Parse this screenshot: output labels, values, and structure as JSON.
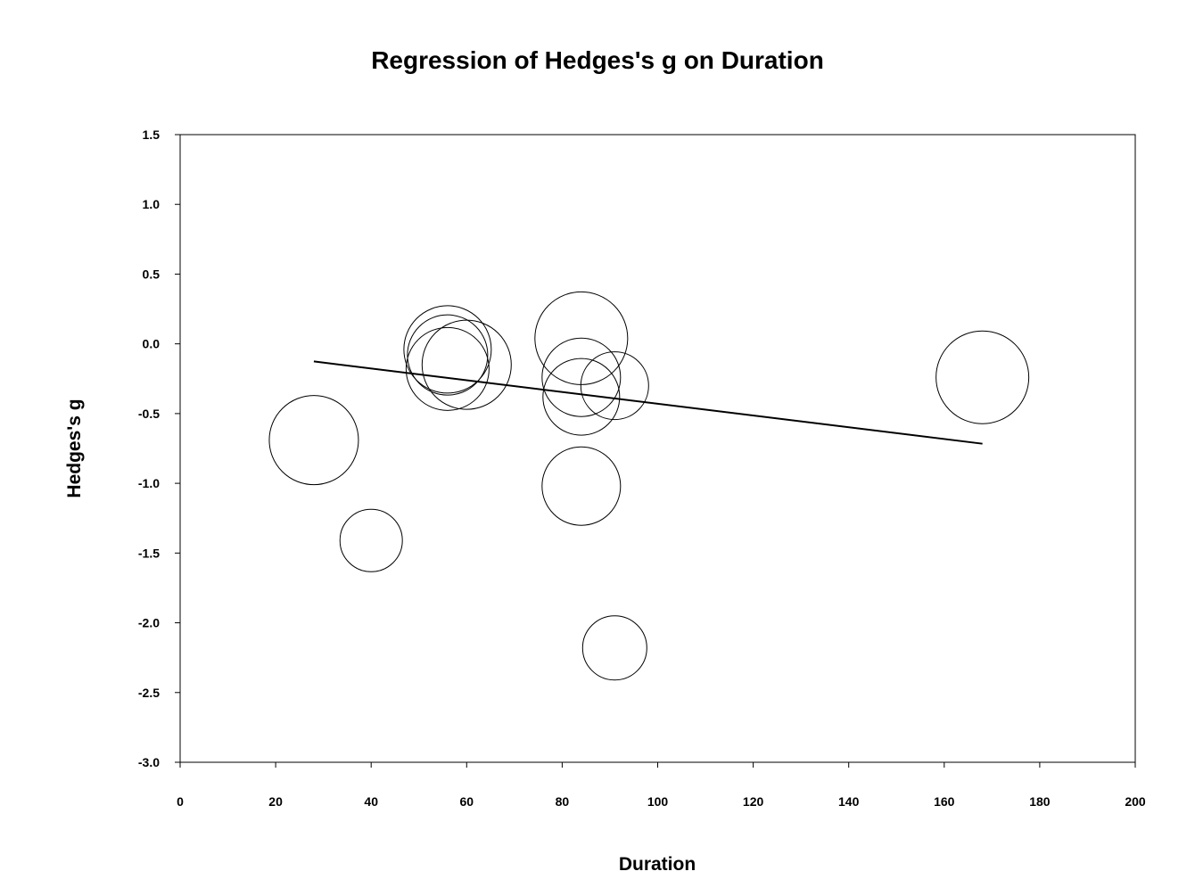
{
  "chart_data": {
    "type": "scatter",
    "title": "Regression of Hedges's g on Duration",
    "xlabel": "Duration",
    "ylabel": "Hedges's g",
    "xlim": [
      0,
      200
    ],
    "ylim": [
      -3.0,
      1.5
    ],
    "x_ticks": [
      "0",
      "20",
      "40",
      "60",
      "80",
      "100",
      "120",
      "140",
      "160",
      "180",
      "200"
    ],
    "y_ticks": [
      "1.5",
      "1.0",
      "0.5",
      "0.0",
      "-0.5",
      "-1.0",
      "-1.5",
      "-2.0",
      "-2.5",
      "-3.0"
    ],
    "grid": false,
    "legend": false,
    "marker": "open circle sized by study weight",
    "colors": {
      "stroke": "#000000",
      "fill": "none",
      "background": "#ffffff"
    },
    "points": [
      {
        "x": 28,
        "y": -0.69,
        "weight": 1.0
      },
      {
        "x": 40,
        "y": -1.41,
        "weight": 0.7
      },
      {
        "x": 56,
        "y": -0.04,
        "weight": 0.98
      },
      {
        "x": 56,
        "y": -0.08,
        "weight": 0.9
      },
      {
        "x": 56,
        "y": -0.18,
        "weight": 0.93
      },
      {
        "x": 60,
        "y": -0.15,
        "weight": 1.0
      },
      {
        "x": 84,
        "y": 0.04,
        "weight": 1.04
      },
      {
        "x": 84,
        "y": -0.24,
        "weight": 0.88
      },
      {
        "x": 84,
        "y": -0.38,
        "weight": 0.86
      },
      {
        "x": 84,
        "y": -1.02,
        "weight": 0.88
      },
      {
        "x": 91,
        "y": -0.3,
        "weight": 0.76
      },
      {
        "x": 91,
        "y": -2.18,
        "weight": 0.72
      },
      {
        "x": 168,
        "y": -0.24,
        "weight": 1.04
      }
    ],
    "regression_line": {
      "x": [
        28,
        168
      ],
      "y": [
        -0.126,
        -0.716
      ]
    }
  }
}
